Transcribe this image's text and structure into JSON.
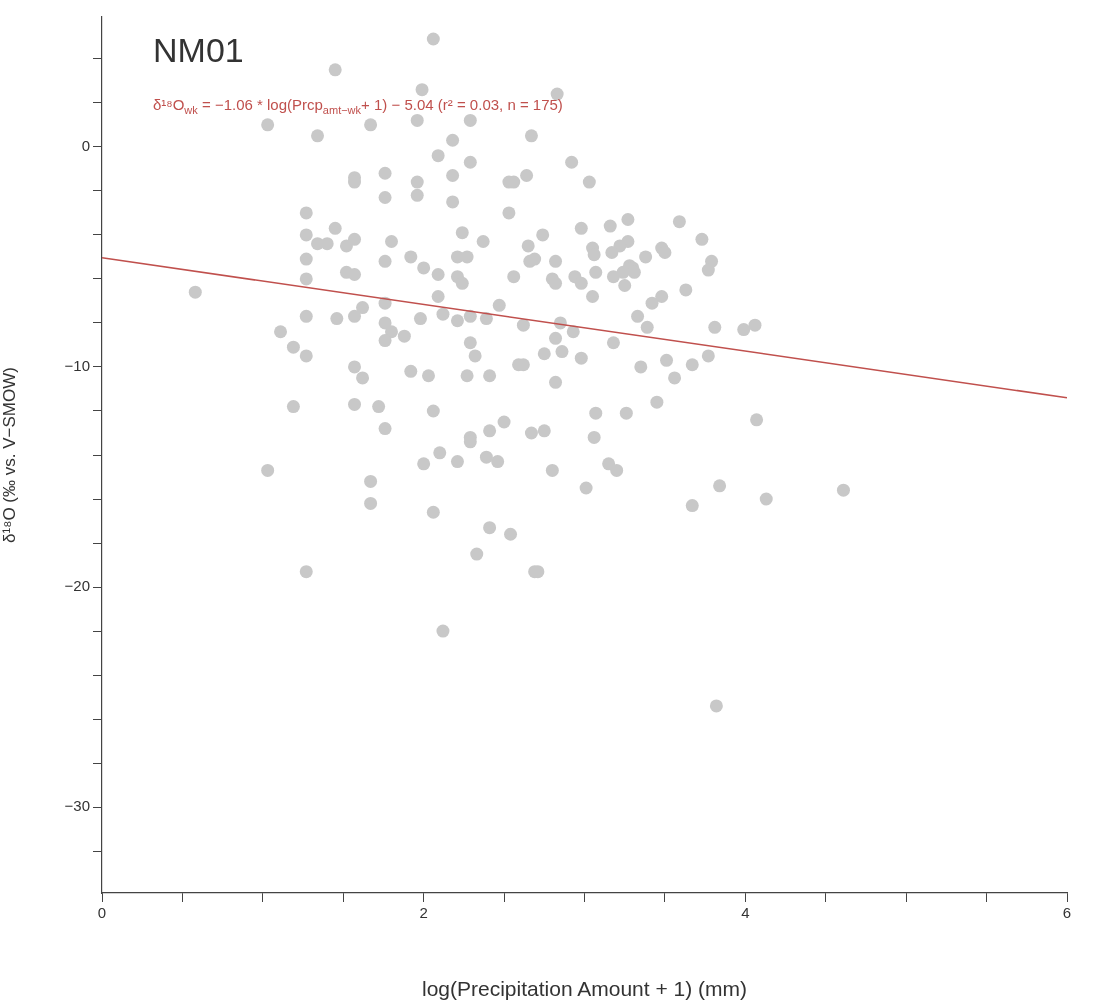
{
  "chart_data": {
    "type": "scatter",
    "title": "NM01",
    "xlabel": "log(Precipitation Amount + 1) (mm)",
    "ylabel": "δ¹⁸O (‰ vs. V−SMOW)",
    "annotations": [
      "δ¹⁸O$_{wk}$ = −1.06 * log(Prcp$_{amt−wk}$+ 1) − 5.04 (r² = 0.03, n = 175)"
    ],
    "xlim": [
      0,
      6
    ],
    "xticks": [
      0,
      {
        "value": 0.5,
        "label": null
      },
      {
        "value": 1,
        "label": null
      },
      {
        "value": 1.5,
        "label": null
      },
      2,
      {
        "value": 2.5,
        "label": null
      },
      {
        "value": 3,
        "label": null
      },
      {
        "value": 3.5,
        "label": null
      },
      4,
      {
        "value": 4.5,
        "label": null
      },
      {
        "value": 5,
        "label": null
      },
      {
        "value": 5.5,
        "label": null
      },
      6
    ],
    "ylim": [
      -33.9,
      5.9
    ],
    "yticks": [
      {
        "value": 4,
        "label": null
      },
      {
        "value": 2,
        "label": null
      },
      0,
      {
        "value": -2,
        "label": null
      },
      {
        "value": -4,
        "label": null
      },
      {
        "value": -6,
        "label": null
      },
      {
        "value": -8,
        "label": null
      },
      -10,
      {
        "value": -12,
        "label": null
      },
      {
        "value": -14,
        "label": null
      },
      {
        "value": -16,
        "label": null
      },
      {
        "value": -18,
        "label": null
      },
      -20,
      {
        "value": -22,
        "label": null
      },
      {
        "value": -24,
        "label": null
      },
      {
        "value": -26,
        "label": null
      },
      {
        "value": -28,
        "label": null
      },
      -30,
      {
        "value": -32,
        "label": null
      }
    ],
    "grid": false,
    "legend": false,
    "marker": "circle",
    "series": [
      {
        "color": "#c8c8c8",
        "x": [
          2.06,
          1.45,
          1.99,
          1.03,
          1.34,
          1.67,
          1.96,
          2.29,
          2.18,
          2.09,
          2.29,
          1.57,
          1.57,
          1.76,
          1.96,
          1.76,
          1.96,
          2.18,
          2.18,
          2.53,
          1.27,
          1.27,
          1.34,
          1.4,
          1.45,
          1.52,
          1.57,
          1.8,
          2.24,
          2.37,
          2.53,
          1.27,
          1.76,
          1.92,
          2.0,
          2.09,
          2.21,
          2.27,
          2.21,
          2.24,
          1.52,
          1.57,
          1.27,
          0.58,
          2.09,
          1.76,
          2.47,
          1.62,
          2.83,
          2.67,
          2.92,
          2.64,
          2.56,
          3.03,
          3.27,
          3.59,
          2.98,
          3.16,
          2.74,
          3.73,
          3.27,
          3.22,
          2.65,
          3.05,
          3.06,
          3.17,
          3.48,
          3.5,
          3.79,
          3.77,
          3.38,
          2.66,
          2.69,
          2.82,
          3.28,
          3.3,
          3.24,
          3.31,
          3.18,
          3.07,
          2.94,
          2.98,
          2.8,
          2.82,
          2.56,
          3.25,
          3.63,
          3.48,
          3.42,
          3.05,
          2.12,
          2.21,
          2.29,
          2.39,
          1.98,
          2.62,
          2.85,
          2.93,
          3.33,
          3.39,
          3.81,
          3.99,
          4.06,
          2.29,
          2.32,
          2.82,
          2.75,
          2.86,
          2.98,
          3.18,
          2.59,
          2.62,
          2.03,
          2.27,
          2.41,
          2.82,
          3.35,
          3.51,
          3.56,
          3.67,
          3.77,
          3.45,
          2.06,
          3.07,
          3.26,
          4.07,
          2.5,
          2.41,
          2.67,
          2.75,
          2.29,
          2.29,
          3.06,
          2.1,
          2.0,
          2.21,
          2.39,
          2.46,
          2.8,
          3.15,
          3.2,
          3.01,
          3.84,
          4.13,
          4.61,
          3.67,
          2.06,
          2.41,
          2.54,
          2.33,
          2.69,
          2.71,
          1.27,
          1.11,
          1.19,
          1.27,
          1.46,
          1.57,
          1.76,
          1.8,
          1.76,
          1.88,
          1.57,
          1.62,
          1.92,
          1.19,
          1.57,
          1.72,
          1.76,
          1.03,
          1.67,
          1.67,
          1.27,
          2.12,
          3.82
        ],
        "values": [
          4.9,
          3.5,
          2.6,
          1.0,
          0.5,
          1.0,
          1.2,
          1.2,
          0.3,
          -0.4,
          -0.7,
          -1.4,
          -1.6,
          -1.2,
          -1.6,
          -2.3,
          -2.2,
          -1.3,
          -2.5,
          -1.6,
          -3.0,
          -4.0,
          -4.4,
          -4.4,
          -3.7,
          -4.5,
          -4.2,
          -4.3,
          -3.9,
          -4.3,
          -3.0,
          -5.1,
          -5.2,
          -5.0,
          -5.5,
          -5.8,
          -5.0,
          -5.0,
          -5.9,
          -6.2,
          -5.7,
          -5.8,
          -6.0,
          -6.6,
          -6.8,
          -7.1,
          -7.2,
          -7.3,
          2.4,
          0.5,
          -0.7,
          -1.3,
          -1.6,
          -1.6,
          -3.3,
          -3.4,
          -3.7,
          -3.6,
          -4.0,
          -4.2,
          -4.3,
          -4.5,
          -4.5,
          -4.6,
          -4.9,
          -4.8,
          -4.6,
          -4.8,
          -5.2,
          -5.6,
          -5.0,
          -5.2,
          -5.1,
          -5.2,
          -5.4,
          -5.5,
          -5.7,
          -5.7,
          -5.9,
          -5.7,
          -5.9,
          -6.2,
          -6.0,
          -6.2,
          -5.9,
          -6.3,
          -6.5,
          -6.8,
          -7.1,
          -6.8,
          -7.6,
          -7.9,
          -7.7,
          -7.8,
          -7.8,
          -8.1,
          -8.0,
          -8.4,
          -7.7,
          -8.2,
          -8.2,
          -8.3,
          -8.1,
          -8.9,
          -9.5,
          -8.7,
          -9.4,
          -9.3,
          -9.6,
          -8.9,
          -9.9,
          -9.9,
          -10.4,
          -10.4,
          -10.4,
          -10.7,
          -10.0,
          -9.7,
          -10.5,
          -9.9,
          -9.5,
          -11.6,
          -12.0,
          -12.1,
          -12.1,
          -12.4,
          -12.5,
          -12.9,
          -13.0,
          -12.9,
          -13.2,
          -13.4,
          -13.2,
          -13.9,
          -14.4,
          -14.3,
          -14.1,
          -14.3,
          -14.7,
          -14.4,
          -14.7,
          -15.5,
          -15.4,
          -16.0,
          -15.6,
          -16.3,
          -16.6,
          -17.3,
          -17.6,
          -18.5,
          -19.3,
          -19.3,
          -7.7,
          -8.4,
          -9.1,
          -9.5,
          -7.8,
          -7.7,
          -8.0,
          -8.4,
          -8.8,
          -8.6,
          -10.0,
          -10.5,
          -10.2,
          -11.8,
          -11.7,
          -11.8,
          -12.8,
          -14.7,
          -15.2,
          -16.2,
          -19.3,
          -22.0,
          -25.4
        ]
      },
      {
        "type": "line",
        "color": "#c0504d",
        "marker": "none",
        "line_style": "solid",
        "x": [
          0,
          6
        ],
        "values": [
          -5.04,
          -11.4
        ]
      }
    ]
  }
}
